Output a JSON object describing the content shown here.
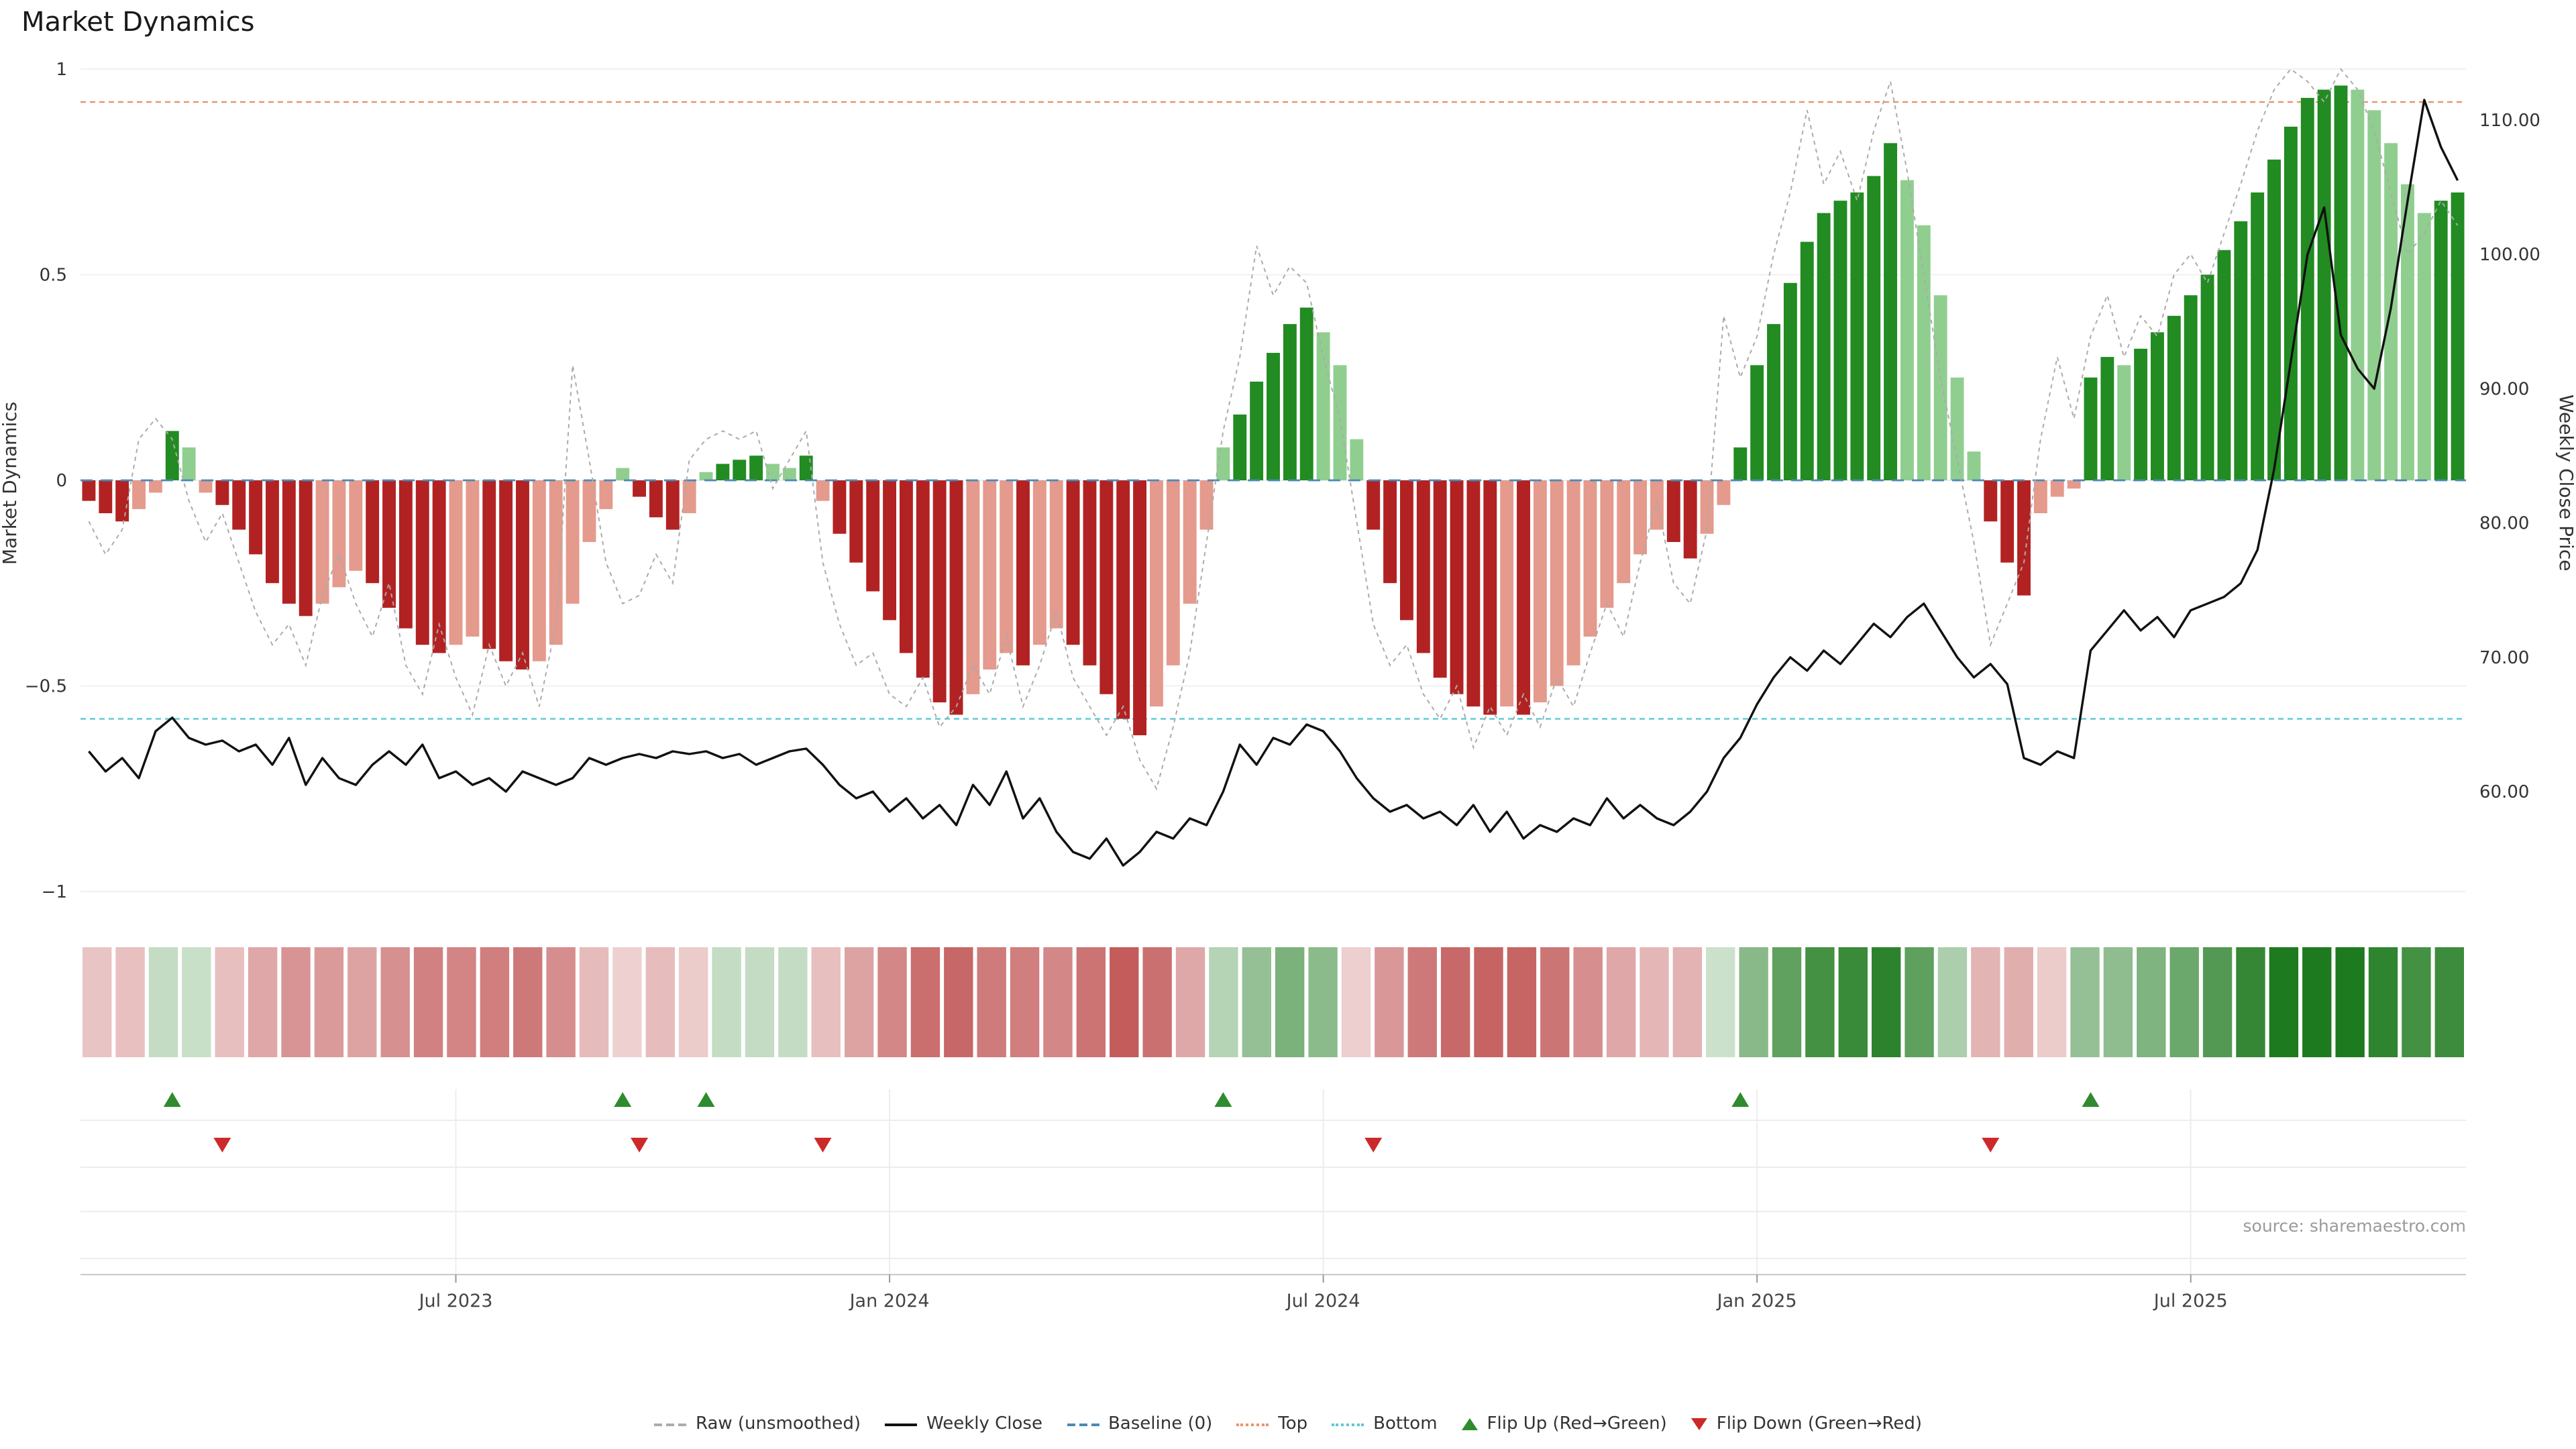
{
  "title": "Market Dynamics",
  "source_text": "source: sharemaestro.com",
  "axes": {
    "left_label": "Market Dynamics",
    "right_label": "Weekly Close Price",
    "left_ticks": [
      "1",
      "0.5",
      "0",
      "−0.5",
      "−1"
    ],
    "left_tick_values": [
      1,
      0.5,
      0,
      -0.5,
      -1
    ],
    "right_ticks": [
      "110.00",
      "100.00",
      "90.00",
      "80.00",
      "70.00",
      "60.00"
    ],
    "right_tick_values": [
      110,
      100,
      90,
      80,
      70,
      60
    ],
    "x_ticks": [
      {
        "label": "Jul 2023",
        "week": 22
      },
      {
        "label": "Jan 2024",
        "week": 48
      },
      {
        "label": "Jul 2024",
        "week": 74
      },
      {
        "label": "Jan 2025",
        "week": 100
      },
      {
        "label": "Jul 2025",
        "week": 126
      }
    ]
  },
  "legend": [
    {
      "label": "Raw (unsmoothed)"
    },
    {
      "label": "Weekly Close"
    },
    {
      "label": "Baseline (0)"
    },
    {
      "label": "Top"
    },
    {
      "label": "Bottom"
    },
    {
      "label": "Flip Up (Red→Green)"
    },
    {
      "label": "Flip Down (Green→Red)"
    }
  ],
  "colors": {
    "bar_green_dark": "#228B22",
    "bar_green_light": "#90CE90",
    "bar_red_dark": "#B22222",
    "bar_red_light": "#E49A8C",
    "raw_line": "#ABABAB",
    "close_line": "#111111",
    "baseline": "#4A89B8",
    "top_line": "#E8936A",
    "bottom_line": "#5BC8D4",
    "flip_up": "#2E8B2E",
    "flip_down": "#CC2A2A"
  },
  "chart_data": {
    "type": "bar+line",
    "title": "Market Dynamics",
    "x_unit": "week",
    "ylim_left": [
      -1.08,
      1.0
    ],
    "ylim_right": [
      54,
      112
    ],
    "baseline": 0,
    "top_level": 0.92,
    "bottom_level": -0.58,
    "flip_up_weeks": [
      5,
      32,
      37,
      68,
      99,
      120
    ],
    "flip_down_weeks": [
      8,
      33,
      44,
      77,
      114
    ],
    "oscillator": [
      -0.05,
      -0.08,
      -0.1,
      -0.07,
      -0.03,
      0.12,
      0.08,
      -0.03,
      -0.06,
      -0.12,
      -0.18,
      -0.25,
      -0.3,
      -0.33,
      -0.3,
      -0.26,
      -0.22,
      -0.25,
      -0.31,
      -0.36,
      -0.4,
      -0.42,
      -0.4,
      -0.38,
      -0.41,
      -0.44,
      -0.46,
      -0.44,
      -0.4,
      -0.3,
      -0.15,
      -0.07,
      0.03,
      -0.04,
      -0.09,
      -0.12,
      -0.08,
      0.02,
      0.04,
      0.05,
      0.06,
      0.04,
      0.03,
      0.06,
      -0.05,
      -0.13,
      -0.2,
      -0.27,
      -0.34,
      -0.42,
      -0.48,
      -0.54,
      -0.57,
      -0.52,
      -0.46,
      -0.42,
      -0.45,
      -0.4,
      -0.36,
      -0.4,
      -0.45,
      -0.52,
      -0.58,
      -0.62,
      -0.55,
      -0.45,
      -0.3,
      -0.12,
      0.08,
      0.16,
      0.24,
      0.31,
      0.38,
      0.42,
      0.36,
      0.28,
      0.1,
      -0.12,
      -0.25,
      -0.34,
      -0.42,
      -0.48,
      -0.52,
      -0.55,
      -0.57,
      -0.55,
      -0.57,
      -0.54,
      -0.5,
      -0.45,
      -0.38,
      -0.31,
      -0.25,
      -0.18,
      -0.12,
      -0.15,
      -0.19,
      -0.13,
      -0.06,
      0.08,
      0.28,
      0.38,
      0.48,
      0.58,
      0.65,
      0.68,
      0.7,
      0.74,
      0.82,
      0.73,
      0.62,
      0.45,
      0.25,
      0.07,
      -0.1,
      -0.2,
      -0.28,
      -0.08,
      -0.04,
      -0.02,
      0.25,
      0.3,
      0.28,
      0.32,
      0.36,
      0.4,
      0.45,
      0.5,
      0.56,
      0.63,
      0.7,
      0.78,
      0.86,
      0.93,
      0.95,
      0.96,
      0.95,
      0.9,
      0.82,
      0.72,
      0.65,
      0.68,
      0.7
    ],
    "raw": [
      -0.1,
      -0.18,
      -0.12,
      0.1,
      0.15,
      0.1,
      -0.05,
      -0.15,
      -0.08,
      -0.2,
      -0.32,
      -0.4,
      -0.35,
      -0.45,
      -0.28,
      -0.18,
      -0.3,
      -0.38,
      -0.25,
      -0.45,
      -0.52,
      -0.35,
      -0.48,
      -0.57,
      -0.4,
      -0.5,
      -0.42,
      -0.55,
      -0.35,
      0.28,
      0.05,
      -0.2,
      -0.3,
      -0.28,
      -0.18,
      -0.25,
      0.05,
      0.1,
      0.12,
      0.1,
      0.12,
      -0.02,
      0.05,
      0.12,
      -0.2,
      -0.35,
      -0.45,
      -0.42,
      -0.52,
      -0.55,
      -0.48,
      -0.6,
      -0.55,
      -0.45,
      -0.52,
      -0.38,
      -0.55,
      -0.45,
      -0.32,
      -0.48,
      -0.55,
      -0.62,
      -0.55,
      -0.68,
      -0.75,
      -0.6,
      -0.42,
      -0.15,
      0.12,
      0.3,
      0.57,
      0.45,
      0.52,
      0.48,
      0.3,
      0.15,
      -0.1,
      -0.35,
      -0.45,
      -0.4,
      -0.52,
      -0.58,
      -0.5,
      -0.65,
      -0.55,
      -0.62,
      -0.52,
      -0.6,
      -0.48,
      -0.55,
      -0.42,
      -0.3,
      -0.38,
      -0.2,
      -0.05,
      -0.25,
      -0.3,
      -0.12,
      0.4,
      0.25,
      0.35,
      0.55,
      0.7,
      0.9,
      0.72,
      0.8,
      0.68,
      0.85,
      0.97,
      0.75,
      0.5,
      0.25,
      0.05,
      -0.15,
      -0.4,
      -0.3,
      -0.2,
      0.1,
      0.3,
      0.15,
      0.35,
      0.45,
      0.3,
      0.4,
      0.35,
      0.5,
      0.55,
      0.48,
      0.6,
      0.72,
      0.85,
      0.95,
      1.0,
      0.97,
      0.92,
      1.0,
      0.95,
      0.85,
      0.7,
      0.55,
      0.6,
      0.68,
      0.62
    ],
    "weekly_close": [
      63.0,
      61.5,
      62.5,
      61.0,
      64.5,
      65.5,
      64.0,
      63.5,
      63.8,
      63.0,
      63.5,
      62.0,
      64.0,
      60.5,
      62.5,
      61.0,
      60.5,
      62.0,
      63.0,
      62.0,
      63.5,
      61.0,
      61.5,
      60.5,
      61.0,
      60.0,
      61.5,
      61.0,
      60.5,
      61.0,
      62.5,
      62.0,
      62.5,
      62.8,
      62.5,
      63.0,
      62.8,
      63.0,
      62.5,
      62.8,
      62.0,
      62.5,
      63.0,
      63.2,
      62.0,
      60.5,
      59.5,
      60.0,
      58.5,
      59.5,
      58.0,
      59.0,
      57.5,
      60.5,
      59.0,
      61.5,
      58.0,
      59.5,
      57.0,
      55.5,
      55.0,
      56.5,
      54.5,
      55.5,
      57.0,
      56.5,
      58.0,
      57.5,
      60.0,
      63.5,
      62.0,
      64.0,
      63.5,
      65.0,
      64.5,
      63.0,
      61.0,
      59.5,
      58.5,
      59.0,
      58.0,
      58.5,
      57.5,
      59.0,
      57.0,
      58.5,
      56.5,
      57.5,
      57.0,
      58.0,
      57.5,
      59.5,
      58.0,
      59.0,
      58.0,
      57.5,
      58.5,
      60.0,
      62.5,
      64.0,
      66.5,
      68.5,
      70.0,
      69.0,
      70.5,
      69.5,
      71.0,
      72.5,
      71.5,
      73.0,
      74.0,
      72.0,
      70.0,
      68.5,
      69.5,
      68.0,
      62.5,
      62.0,
      63.0,
      62.5,
      70.5,
      72.0,
      73.5,
      72.0,
      73.0,
      71.5,
      73.5,
      74.0,
      74.5,
      75.5,
      78.0,
      84.0,
      92.0,
      100.0,
      103.5,
      94.0,
      91.5,
      90.0,
      96.0,
      104.0,
      111.5,
      108.0,
      105.5
    ]
  }
}
